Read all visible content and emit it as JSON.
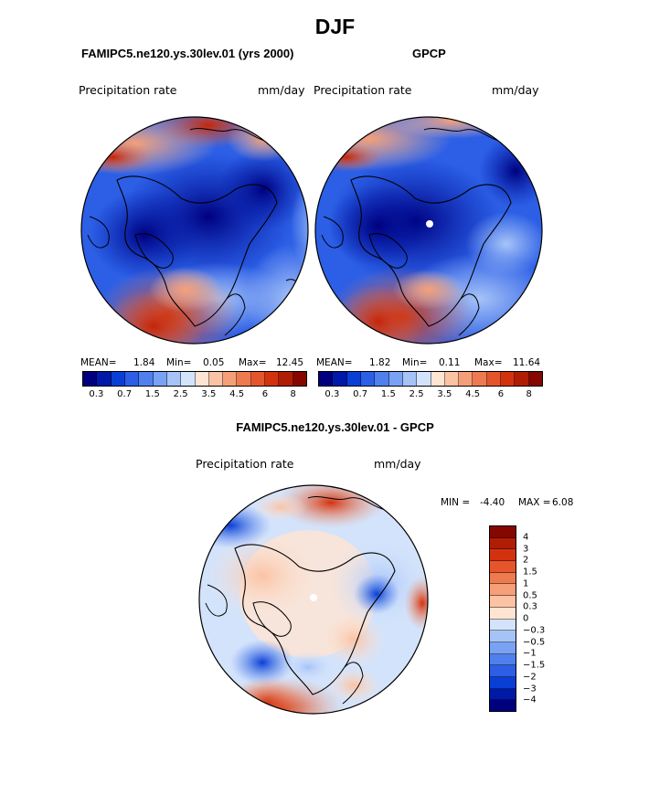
{
  "figure": {
    "season": "DJF",
    "left_title": "FAMIPC5.ne120.ys.30lev.01 (yrs 2000)",
    "right_title": "GPCP",
    "diff_title": "FAMIPC5.ne120.ys.30lev.01 - GPCP",
    "variable": "Precipitation rate",
    "units": "mm/day"
  },
  "stats": {
    "left": {
      "mean_label": "MEAN=",
      "mean": "1.84",
      "min_label": "Min=",
      "min": "0.05",
      "max_label": "Max=",
      "max": "12.45"
    },
    "right": {
      "mean_label": "MEAN=",
      "mean": "1.82",
      "min_label": "Min=",
      "min": "0.11",
      "max_label": "Max=",
      "max": "11.64"
    },
    "diff": {
      "min_label": "MIN =",
      "min": "-4.40",
      "max_label": "MAX =",
      "max": "6.08"
    }
  },
  "chart_data": [
    {
      "type": "heatmap",
      "title": "FAMIPC5.ne120.ys.30lev.01 (yrs 2000)",
      "variable": "Precipitation rate",
      "units": "mm/day",
      "projection": "north-polar-stereographic",
      "mean": 1.84,
      "min": 0.05,
      "max": 12.45,
      "colorbar_levels": [
        0.2,
        0.3,
        0.5,
        0.7,
        1,
        1.5,
        2,
        2.5,
        3,
        3.5,
        4,
        4.5,
        5,
        6,
        7,
        8
      ],
      "colorbar_tick_labels": [
        "0.3",
        "0.7",
        "1.5",
        "2.5",
        "3.5",
        "4.5",
        "6",
        "8"
      ]
    },
    {
      "type": "heatmap",
      "title": "GPCP",
      "variable": "Precipitation rate",
      "units": "mm/day",
      "projection": "north-polar-stereographic",
      "mean": 1.82,
      "min": 0.11,
      "max": 11.64,
      "colorbar_levels": [
        0.2,
        0.3,
        0.5,
        0.7,
        1,
        1.5,
        2,
        2.5,
        3,
        3.5,
        4,
        4.5,
        5,
        6,
        7,
        8
      ],
      "colorbar_tick_labels": [
        "0.3",
        "0.7",
        "1.5",
        "2.5",
        "3.5",
        "4.5",
        "6",
        "8"
      ]
    },
    {
      "type": "heatmap",
      "title": "FAMIPC5.ne120.ys.30lev.01 - GPCP",
      "variable": "Precipitation rate",
      "units": "mm/day",
      "projection": "north-polar-stereographic",
      "min": -4.4,
      "max": 6.08,
      "colorbar_tick_labels": [
        "4",
        "3",
        "2",
        "1.5",
        "1",
        "0.5",
        "0.3",
        "0",
        "−0.3",
        "−0.5",
        "−1",
        "−1.5",
        "−2",
        "−3",
        "−4"
      ]
    }
  ],
  "colors": {
    "seq": [
      "#00007f",
      "#0019a8",
      "#0a3fd6",
      "#2c5fe6",
      "#4f80ee",
      "#7aa2f4",
      "#a6c3f8",
      "#d3e3fb",
      "#fde4d3",
      "#fbc2a4",
      "#f59f78",
      "#ee7a4f",
      "#e5552c",
      "#d3320f",
      "#b01d05",
      "#850700"
    ],
    "div": [
      "#850700",
      "#b01d05",
      "#d3320f",
      "#e5552c",
      "#ee7a4f",
      "#f59f78",
      "#fbc2a4",
      "#fde4d3",
      "#d3e3fb",
      "#a6c3f8",
      "#7aa2f4",
      "#4f80ee",
      "#2c5fe6",
      "#0a3fd6",
      "#0019a8",
      "#00007f"
    ]
  }
}
